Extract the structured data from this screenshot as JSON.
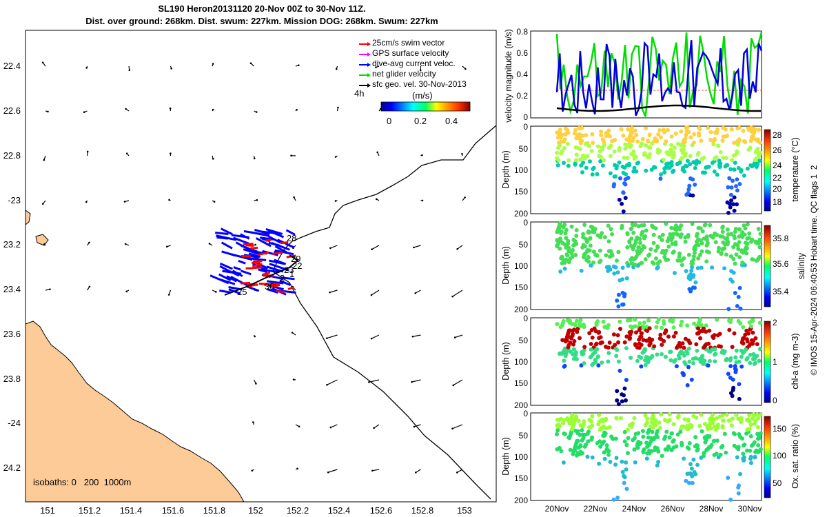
{
  "title_line1": "SL190 Heron20131120 20-Nov 00Z to 30-Nov 11Z.",
  "title_line2": "Dist. over ground: 268km. Dist. swum: 227km. Mission DOG: 268km. Swum: 227km",
  "map": {
    "lat_ticks": [
      "22.4",
      "22.6",
      "22.8",
      "-23",
      "23.2",
      "23.4",
      "23.6",
      "23.8",
      "-24",
      "24.2"
    ],
    "lon_ticks": [
      "151",
      "151.2",
      "151.4",
      "151.6",
      "151.8",
      "152",
      "152.2",
      "152.4",
      "152.6",
      "152.8",
      "153"
    ],
    "legend": [
      {
        "label": "25cm/s swim vector",
        "color": "#ff0000"
      },
      {
        "label": "GPS surface velocity",
        "color": "#ff00ff"
      },
      {
        "label": "dive-avg current veloc.",
        "color": "#0000ff"
      },
      {
        "label": "net glider velocity",
        "color": "#00dd00"
      },
      {
        "label": "sfc geo. vel. 30-Nov-2013",
        "color": "#000000"
      }
    ],
    "time_note": "4h",
    "colorbar_title": "(m/s)",
    "colorbar_ticks": [
      "0",
      "0.2",
      "0.4"
    ],
    "day_labels": [
      "28",
      "29",
      "30",
      "23",
      "22",
      "1",
      "2",
      "25"
    ],
    "isobaths_label": "isobaths: 0   200  1000m"
  },
  "velocity_panel": {
    "ylabel": "velocity magnitude (m/s)",
    "yticks": [
      "0.8",
      "0.6",
      "0.4",
      "0.2",
      "0"
    ]
  },
  "profiles": [
    {
      "id": "temperature",
      "cbar_label": "temperature (°C)",
      "cbar_ticks": [
        "28",
        "26",
        "24",
        "22",
        "20",
        "18"
      ],
      "ylabel": "Depth (m)",
      "yticks": [
        "0",
        "50",
        "100",
        "150",
        "200"
      ]
    },
    {
      "id": "salinity",
      "cbar_label": "salinity",
      "cbar_ticks": [
        "35.8",
        "35.6",
        "35.4"
      ],
      "ylabel": "Depth (m)",
      "yticks": [
        "0",
        "50",
        "100",
        "150",
        "200"
      ]
    },
    {
      "id": "chla",
      "cbar_label": "chl-a (mg m-3)",
      "cbar_ticks": [
        "2",
        "1",
        "0"
      ],
      "ylabel": "Depth (m)",
      "yticks": [
        "0",
        "50",
        "100",
        "150",
        "200"
      ]
    },
    {
      "id": "oxygen",
      "cbar_label": "Ox. sat. ratio (%)",
      "cbar_ticks": [
        "150",
        "100",
        "50"
      ],
      "ylabel": "Depth (m)",
      "yticks": [
        "0",
        "50",
        "100",
        "150",
        "200"
      ]
    }
  ],
  "x_ticks": [
    "20Nov",
    "22Nov",
    "24Nov",
    "26Nov",
    "28Nov",
    "30Nov"
  ],
  "footer": "© IMOS 15-Apr-2024 06:40:53 Hobart time. QC flags 1  2"
}
